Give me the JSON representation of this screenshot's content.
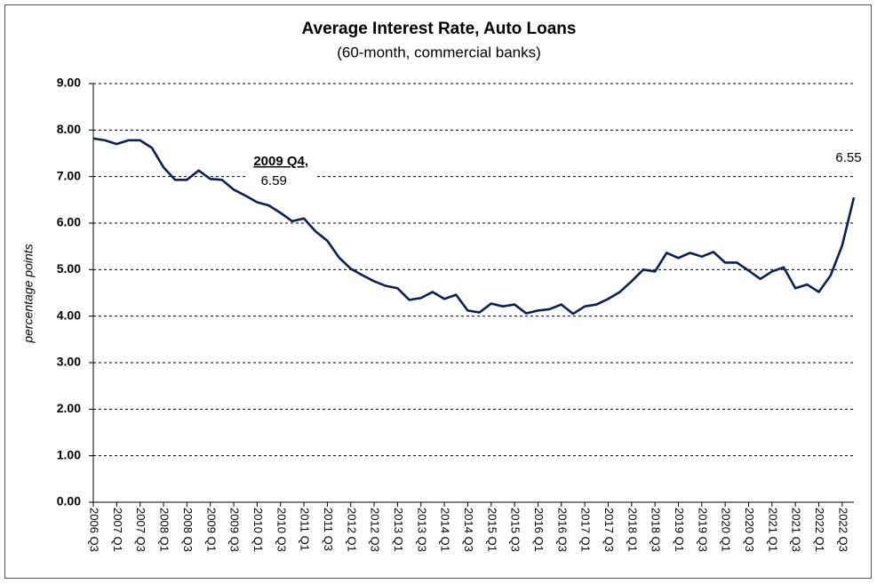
{
  "chart_data": {
    "type": "line",
    "title": "Average Interest Rate, Auto Loans",
    "subtitle": "(60-month, commercial banks)",
    "y_label": "percentage points",
    "annotation": "2009 Q4,",
    "categories": [
      "2006 Q3",
      null,
      "2007 Q1",
      null,
      "2007 Q3",
      null,
      "2008 Q1",
      null,
      "2008 Q3",
      null,
      "2009 Q1",
      null,
      "2009 Q3",
      null,
      "2010 Q1",
      null,
      "2010 Q3",
      null,
      "2011 Q1",
      null,
      "2011 Q3",
      null,
      "2012 Q1",
      null,
      "2012 Q3",
      null,
      "2013 Q1",
      null,
      "2013 Q3",
      null,
      "2014 Q1",
      null,
      "2014 Q3",
      null,
      "2015 Q1",
      null,
      "2015 Q3",
      null,
      "2016 Q1",
      null,
      "2016 Q3",
      null,
      "2017 Q1",
      null,
      "2017 Q3",
      null,
      "2018 Q1",
      null,
      "2018 Q3",
      null,
      "2019 Q1",
      null,
      "2019 Q3",
      null,
      "2020 Q1",
      null,
      "2020 Q3",
      null,
      "2021 Q1",
      null,
      "2021 Q3",
      null,
      "2022 Q1",
      null,
      "2022 Q3",
      null
    ],
    "series": [
      {
        "name": "Average Interest Rate",
        "color": "#0d1f4f",
        "values": [
          7.82,
          7.78,
          7.7,
          7.78,
          7.78,
          7.62,
          7.2,
          6.93,
          6.93,
          7.13,
          6.95,
          6.93,
          6.72,
          6.59,
          6.45,
          6.38,
          6.22,
          6.04,
          6.1,
          5.82,
          5.62,
          5.26,
          5.02,
          4.88,
          4.75,
          4.65,
          4.6,
          4.35,
          4.39,
          4.52,
          4.37,
          4.46,
          4.12,
          4.08,
          4.27,
          4.21,
          4.25,
          4.06,
          4.12,
          4.15,
          4.25,
          4.05,
          4.21,
          4.25,
          4.37,
          4.52,
          4.75,
          5.0,
          4.96,
          5.36,
          5.25,
          5.36,
          5.28,
          5.38,
          5.15,
          5.15,
          4.98,
          4.8,
          4.96,
          5.05,
          4.6,
          4.68,
          4.52,
          4.87,
          5.52,
          6.55
        ]
      }
    ],
    "ylim": [
      0,
      9
    ],
    "yticks": [
      {
        "value": 0,
        "label": "0.00"
      },
      {
        "value": 1,
        "label": "1.00"
      },
      {
        "value": 2,
        "label": "2.00"
      },
      {
        "value": 3,
        "label": "3.00"
      },
      {
        "value": 4,
        "label": "4.00"
      },
      {
        "value": 5,
        "label": "5.00"
      },
      {
        "value": 6,
        "label": "6.00"
      },
      {
        "value": 7,
        "label": "7.00"
      },
      {
        "value": 8,
        "label": "8.00"
      },
      {
        "value": 9,
        "label": "9.00"
      }
    ],
    "grid": true
  }
}
